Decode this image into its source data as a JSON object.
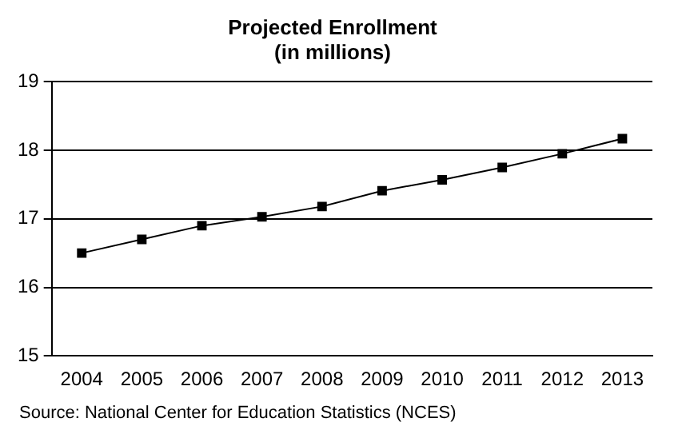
{
  "chart_data": {
    "type": "line",
    "title": "Projected Enrollment",
    "subtitle": "(in millions)",
    "categories": [
      "2004",
      "2005",
      "2006",
      "2007",
      "2008",
      "2009",
      "2010",
      "2011",
      "2012",
      "2013"
    ],
    "series": [
      {
        "color": "#000000",
        "values": [
          16.5,
          16.7,
          16.9,
          17.03,
          17.18,
          17.41,
          17.57,
          17.75,
          17.95,
          18.17
        ]
      }
    ],
    "ylim": [
      15,
      19
    ],
    "yticks": [
      15,
      16,
      17,
      18,
      19
    ],
    "grid": "y",
    "legend": false,
    "marker": "square",
    "line_style": "solid",
    "annotations": [
      "Source: National Center for Education Statistics (NCES)"
    ]
  }
}
